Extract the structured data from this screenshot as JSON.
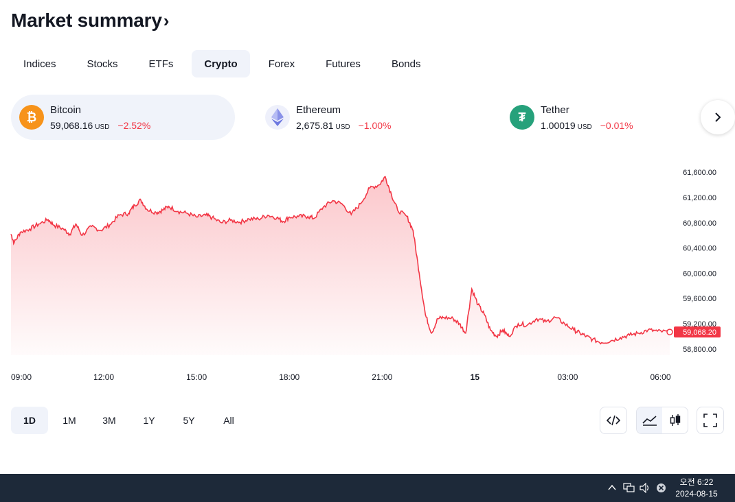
{
  "page_title": "Market summary",
  "title_chevron": "›",
  "tabs": [
    {
      "label": "Indices",
      "active": false
    },
    {
      "label": "Stocks",
      "active": false
    },
    {
      "label": "ETFs",
      "active": false
    },
    {
      "label": "Crypto",
      "active": true
    },
    {
      "label": "Forex",
      "active": false
    },
    {
      "label": "Futures",
      "active": false
    },
    {
      "label": "Bonds",
      "active": false
    }
  ],
  "tickers": [
    {
      "name": "Bitcoin",
      "price": "59,068.16",
      "currency": "USD",
      "change": "−2.52%",
      "icon": "bitcoin-icon",
      "color": "#f7931a",
      "glyph": "₿",
      "active": true
    },
    {
      "name": "Ethereum",
      "price": "2,675.81",
      "currency": "USD",
      "change": "−1.00%",
      "icon": "ethereum-icon",
      "color": "#627eea",
      "glyph": "",
      "active": false
    },
    {
      "name": "Tether",
      "price": "1.00019",
      "currency": "USD",
      "change": "−0.01%",
      "icon": "tether-icon",
      "color": "#26a17b",
      "glyph": "₮",
      "active": false
    }
  ],
  "next_icon": "chevron-right-icon",
  "chart_data": {
    "type": "area",
    "series_color": "#f23645",
    "x_tick_labels": [
      "09:00",
      "12:00",
      "15:00",
      "18:00",
      "21:00",
      "15",
      "03:00",
      "06:00"
    ],
    "x_tick_hours": [
      0,
      3,
      6,
      9,
      12,
      15,
      18,
      21
    ],
    "x_range_hours": [
      0,
      21.3
    ],
    "y_tick_labels": [
      "61,600.00",
      "61,200.00",
      "60,800.00",
      "60,400.00",
      "60,000.00",
      "59,600.00",
      "59,200.00",
      "58,800.00"
    ],
    "y_ticks": [
      61600,
      61200,
      60800,
      60400,
      60000,
      59600,
      59200,
      58800
    ],
    "ylim": [
      58700,
      61700
    ],
    "last_price_label": "59,068.20",
    "points": [
      [
        0.0,
        60620
      ],
      [
        0.1,
        60480
      ],
      [
        0.3,
        60650
      ],
      [
        0.6,
        60700
      ],
      [
        0.9,
        60780
      ],
      [
        1.2,
        60850
      ],
      [
        1.4,
        60760
      ],
      [
        1.7,
        60700
      ],
      [
        1.9,
        60620
      ],
      [
        2.1,
        60780
      ],
      [
        2.3,
        60600
      ],
      [
        2.6,
        60740
      ],
      [
        2.9,
        60680
      ],
      [
        3.2,
        60770
      ],
      [
        3.5,
        60920
      ],
      [
        3.8,
        60950
      ],
      [
        4.0,
        61080
      ],
      [
        4.2,
        61160
      ],
      [
        4.4,
        61010
      ],
      [
        4.7,
        60960
      ],
      [
        4.9,
        61000
      ],
      [
        5.1,
        61060
      ],
      [
        5.4,
        60980
      ],
      [
        5.7,
        60950
      ],
      [
        6.0,
        60890
      ],
      [
        6.3,
        60920
      ],
      [
        6.5,
        60880
      ],
      [
        6.8,
        60800
      ],
      [
        7.1,
        60840
      ],
      [
        7.4,
        60810
      ],
      [
        7.7,
        60860
      ],
      [
        8.0,
        60860
      ],
      [
        8.3,
        60920
      ],
      [
        8.6,
        60880
      ],
      [
        8.8,
        60820
      ],
      [
        9.0,
        60890
      ],
      [
        9.3,
        60900
      ],
      [
        9.6,
        60900
      ],
      [
        9.8,
        60870
      ],
      [
        10.1,
        61050
      ],
      [
        10.4,
        61150
      ],
      [
        10.7,
        61100
      ],
      [
        11.0,
        60930
      ],
      [
        11.3,
        61100
      ],
      [
        11.6,
        61350
      ],
      [
        11.9,
        61400
      ],
      [
        12.1,
        61530
      ],
      [
        12.3,
        61250
      ],
      [
        12.5,
        61000
      ],
      [
        12.8,
        60900
      ],
      [
        13.0,
        60680
      ],
      [
        13.2,
        60000
      ],
      [
        13.4,
        59340
      ],
      [
        13.6,
        59050
      ],
      [
        13.8,
        59280
      ],
      [
        14.0,
        59300
      ],
      [
        14.3,
        59280
      ],
      [
        14.5,
        59200
      ],
      [
        14.7,
        59050
      ],
      [
        14.9,
        59750
      ],
      [
        15.1,
        59500
      ],
      [
        15.3,
        59350
      ],
      [
        15.5,
        59100
      ],
      [
        15.7,
        59000
      ],
      [
        15.9,
        59100
      ],
      [
        16.1,
        59000
      ],
      [
        16.4,
        59200
      ],
      [
        16.7,
        59180
      ],
      [
        17.0,
        59280
      ],
      [
        17.3,
        59230
      ],
      [
        17.6,
        59300
      ],
      [
        17.9,
        59200
      ],
      [
        18.2,
        59100
      ],
      [
        18.4,
        59050
      ],
      [
        18.6,
        59000
      ],
      [
        18.8,
        58950
      ],
      [
        19.1,
        58900
      ],
      [
        19.4,
        58930
      ],
      [
        19.7,
        58980
      ],
      [
        20.0,
        59020
      ],
      [
        20.3,
        59050
      ],
      [
        20.6,
        59100
      ],
      [
        20.9,
        59080
      ],
      [
        21.3,
        59068
      ]
    ]
  },
  "ranges": [
    {
      "label": "1D",
      "active": true
    },
    {
      "label": "1M",
      "active": false
    },
    {
      "label": "3M",
      "active": false
    },
    {
      "label": "1Y",
      "active": false
    },
    {
      "label": "5Y",
      "active": false
    },
    {
      "label": "All",
      "active": false
    }
  ],
  "tools": {
    "embed_icon": "code-icon",
    "area_icon": "area-chart-icon",
    "candle_icon": "candlestick-icon",
    "fullscreen_icon": "fullscreen-icon"
  },
  "taskbar": {
    "time": "오전 6:22",
    "date": "2024-08-15",
    "tray_icons": [
      "chevron-up-icon",
      "network-icon",
      "volume-icon",
      "close-circle-icon"
    ]
  }
}
